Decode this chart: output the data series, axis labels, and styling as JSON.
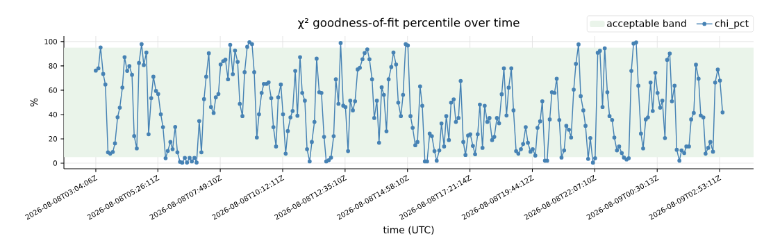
{
  "chart_data": {
    "type": "line",
    "title": "χ² goodness-of-fit percentile over time",
    "xlabel": "time (UTC)",
    "ylabel": "%",
    "x": [
      "2026-08-08T03:04",
      "2026-08-08T03:10",
      "2026-08-08T03:15",
      "2026-08-08T03:21",
      "2026-08-08T03:26",
      "2026-08-08T03:32",
      "2026-08-08T03:37",
      "2026-08-08T03:43",
      "2026-08-08T03:48",
      "2026-08-08T03:54",
      "2026-08-08T03:59",
      "2026-08-08T04:05",
      "2026-08-08T04:10",
      "2026-08-08T04:16",
      "2026-08-08T04:21",
      "2026-08-08T04:27",
      "2026-08-08T04:32",
      "2026-08-08T04:38",
      "2026-08-08T04:43",
      "2026-08-08T04:49",
      "2026-08-08T04:54",
      "2026-08-08T05:00",
      "2026-08-08T05:05",
      "2026-08-08T05:11",
      "2026-08-08T05:16",
      "2026-08-08T05:22",
      "2026-08-08T05:27",
      "2026-08-08T05:33",
      "2026-08-08T05:38",
      "2026-08-08T05:44",
      "2026-08-08T05:49",
      "2026-08-08T05:55",
      "2026-08-08T06:00",
      "2026-08-08T06:06",
      "2026-08-08T06:11",
      "2026-08-08T06:17",
      "2026-08-08T06:22",
      "2026-08-08T06:28",
      "2026-08-08T06:33",
      "2026-08-08T06:39",
      "2026-08-08T06:44",
      "2026-08-08T06:50",
      "2026-08-08T06:55",
      "2026-08-08T07:01",
      "2026-08-08T07:06",
      "2026-08-08T07:12",
      "2026-08-08T07:17",
      "2026-08-08T07:23",
      "2026-08-08T07:28",
      "2026-08-08T07:34",
      "2026-08-08T07:39",
      "2026-08-08T07:45",
      "2026-08-08T07:50",
      "2026-08-08T07:56",
      "2026-08-08T08:01",
      "2026-08-08T08:07",
      "2026-08-08T08:12",
      "2026-08-08T08:18",
      "2026-08-08T08:23",
      "2026-08-08T08:29",
      "2026-08-08T08:34",
      "2026-08-08T08:40",
      "2026-08-08T08:45",
      "2026-08-08T08:51",
      "2026-08-08T08:56",
      "2026-08-08T09:02",
      "2026-08-08T09:07",
      "2026-08-08T09:13",
      "2026-08-08T09:18",
      "2026-08-08T09:24",
      "2026-08-08T09:29",
      "2026-08-08T09:35",
      "2026-08-08T09:40",
      "2026-08-08T09:46",
      "2026-08-08T09:51",
      "2026-08-08T09:57",
      "2026-08-08T10:02",
      "2026-08-08T10:08",
      "2026-08-08T10:13",
      "2026-08-08T10:19",
      "2026-08-08T10:24",
      "2026-08-08T10:30",
      "2026-08-08T10:35",
      "2026-08-08T10:41",
      "2026-08-08T10:46",
      "2026-08-08T10:52",
      "2026-08-08T10:57",
      "2026-08-08T11:03",
      "2026-08-08T11:08",
      "2026-08-08T11:14",
      "2026-08-08T11:19",
      "2026-08-08T11:25",
      "2026-08-08T11:30",
      "2026-08-08T11:36",
      "2026-08-08T11:41",
      "2026-08-08T11:47",
      "2026-08-08T11:52",
      "2026-08-08T11:58",
      "2026-08-08T12:03",
      "2026-08-08T12:09",
      "2026-08-08T12:14",
      "2026-08-08T12:20",
      "2026-08-08T12:25",
      "2026-08-08T12:31",
      "2026-08-08T12:36",
      "2026-08-08T12:42",
      "2026-08-08T12:47",
      "2026-08-08T12:53",
      "2026-08-08T12:58",
      "2026-08-08T13:04",
      "2026-08-08T13:09",
      "2026-08-08T13:15",
      "2026-08-08T13:20",
      "2026-08-08T13:26",
      "2026-08-08T13:31",
      "2026-08-08T13:37",
      "2026-08-08T13:42",
      "2026-08-08T13:48",
      "2026-08-08T13:53",
      "2026-08-08T13:59",
      "2026-08-08T14:04",
      "2026-08-08T14:10",
      "2026-08-08T14:15",
      "2026-08-08T14:21",
      "2026-08-08T14:26",
      "2026-08-08T14:32",
      "2026-08-08T14:37",
      "2026-08-08T14:43",
      "2026-08-08T14:48",
      "2026-08-08T14:54",
      "2026-08-08T14:59",
      "2026-08-08T15:05",
      "2026-08-08T15:10",
      "2026-08-08T15:16",
      "2026-08-08T15:21",
      "2026-08-08T15:27",
      "2026-08-08T15:32",
      "2026-08-08T15:38",
      "2026-08-08T15:43",
      "2026-08-08T15:49",
      "2026-08-08T15:54",
      "2026-08-08T16:00",
      "2026-08-08T16:05",
      "2026-08-08T16:11",
      "2026-08-08T16:16",
      "2026-08-08T16:22",
      "2026-08-08T16:27",
      "2026-08-08T16:33",
      "2026-08-08T16:38",
      "2026-08-08T16:44",
      "2026-08-08T16:49",
      "2026-08-08T16:55",
      "2026-08-08T17:00",
      "2026-08-08T17:06",
      "2026-08-08T17:11",
      "2026-08-08T17:17",
      "2026-08-08T17:22",
      "2026-08-08T17:28",
      "2026-08-08T17:33",
      "2026-08-08T17:39",
      "2026-08-08T17:44",
      "2026-08-08T17:50",
      "2026-08-08T17:55",
      "2026-08-08T18:01",
      "2026-08-08T18:06",
      "2026-08-08T18:12",
      "2026-08-08T18:17",
      "2026-08-08T18:23",
      "2026-08-08T18:28",
      "2026-08-08T18:34",
      "2026-08-08T18:39",
      "2026-08-08T18:45",
      "2026-08-08T18:50",
      "2026-08-08T18:56",
      "2026-08-08T19:01",
      "2026-08-08T19:07",
      "2026-08-08T19:12",
      "2026-08-08T19:18",
      "2026-08-08T19:23",
      "2026-08-08T19:29",
      "2026-08-08T19:34",
      "2026-08-08T19:40",
      "2026-08-08T19:45",
      "2026-08-08T19:51",
      "2026-08-08T19:56",
      "2026-08-08T20:02",
      "2026-08-08T20:07",
      "2026-08-08T20:13",
      "2026-08-08T20:18",
      "2026-08-08T20:24",
      "2026-08-08T20:29",
      "2026-08-08T20:35",
      "2026-08-08T20:40",
      "2026-08-08T20:46",
      "2026-08-08T20:51",
      "2026-08-08T20:57",
      "2026-08-08T21:02",
      "2026-08-08T21:08",
      "2026-08-08T21:13",
      "2026-08-08T21:19",
      "2026-08-08T21:24",
      "2026-08-08T21:30",
      "2026-08-08T21:35",
      "2026-08-08T21:41",
      "2026-08-08T21:46",
      "2026-08-08T21:52",
      "2026-08-08T21:57",
      "2026-08-08T22:03",
      "2026-08-08T22:08",
      "2026-08-08T22:14",
      "2026-08-08T22:19",
      "2026-08-08T22:25",
      "2026-08-08T22:30",
      "2026-08-08T22:36",
      "2026-08-08T22:41",
      "2026-08-08T22:47",
      "2026-08-08T22:52",
      "2026-08-08T22:58",
      "2026-08-08T23:03",
      "2026-08-08T23:09",
      "2026-08-08T23:14",
      "2026-08-08T23:20",
      "2026-08-08T23:25",
      "2026-08-08T23:31",
      "2026-08-08T23:36",
      "2026-08-08T23:42",
      "2026-08-08T23:47",
      "2026-08-08T23:53",
      "2026-08-08T23:58",
      "2026-08-09T00:04",
      "2026-08-09T00:09",
      "2026-08-09T00:15",
      "2026-08-09T00:20",
      "2026-08-09T00:26",
      "2026-08-09T00:31",
      "2026-08-09T00:37",
      "2026-08-09T00:42",
      "2026-08-09T00:48",
      "2026-08-09T00:53",
      "2026-08-09T00:59",
      "2026-08-09T01:04",
      "2026-08-09T01:10",
      "2026-08-09T01:15",
      "2026-08-09T01:21",
      "2026-08-09T01:26",
      "2026-08-09T01:32",
      "2026-08-09T01:37",
      "2026-08-09T01:43",
      "2026-08-09T01:48",
      "2026-08-09T01:54",
      "2026-08-09T01:59",
      "2026-08-09T02:05",
      "2026-08-09T02:10",
      "2026-08-09T02:16",
      "2026-08-09T02:21",
      "2026-08-09T02:27",
      "2026-08-09T02:32",
      "2026-08-09T02:38",
      "2026-08-09T02:43",
      "2026-08-09T02:49",
      "2026-08-09T02:54",
      "2026-08-09T03:00"
    ],
    "series": [
      {
        "name": "chi_pct",
        "color": "#4682b4",
        "values": [
          76.1,
          78,
          95.2,
          73.4,
          64.7,
          8.9,
          7.8,
          9.2,
          16.3,
          37.8,
          45.6,
          62.2,
          87.2,
          75.9,
          79.8,
          72.7,
          22.3,
          12.1,
          82.4,
          97.9,
          80.7,
          91.0,
          23.8,
          53.5,
          71.1,
          59.4,
          56.9,
          40.2,
          29.6,
          4.1,
          10.1,
          17.4,
          11.5,
          29.8,
          8.9,
          1.1,
          0.4,
          4.3,
          0.5,
          4.3,
          1.4,
          4.3,
          0.5,
          34.6,
          8.9,
          52.7,
          71.1,
          90.4,
          46.1,
          41.3,
          54.1,
          56.9,
          81.2,
          83.9,
          85.1,
          69.0,
          97.3,
          73.2,
          92.6,
          83.3,
          48.8,
          38.7,
          74.8,
          95.7,
          99.5,
          97.9,
          74.8,
          21.1,
          40.2,
          57.8,
          65.2,
          65.2,
          66.5,
          53.5,
          29.6,
          13.7,
          54.1,
          64.7,
          40.2,
          7.8,
          26.4,
          37.6,
          42.9,
          75.9,
          39.0,
          87.2,
          57.8,
          51.4,
          11.5,
          1.4,
          17.4,
          33.9,
          86.0,
          58.3,
          57.8,
          21.6,
          1.4,
          2.5,
          4.6,
          22.2,
          69.0,
          48.8,
          98.8,
          47.3,
          46.1,
          9.9,
          51.4,
          43.4,
          50.9,
          77.1,
          78.5,
          85.5,
          90.6,
          93.6,
          85.5,
          69.0,
          37.1,
          51.4,
          16.8,
          62.4,
          56.2,
          26.2,
          69.0,
          79.1,
          91.0,
          81.2,
          49.8,
          38.7,
          56.2,
          97.9,
          96.8,
          38.7,
          29.1,
          14.7,
          17.4,
          63.1,
          47.2,
          1.4,
          1.4,
          24.3,
          22.2,
          9.9,
          2.0,
          10.5,
          32.6,
          13.7,
          38.7,
          19.0,
          49.8,
          52.5,
          33.9,
          37.1,
          67.6,
          17.4,
          6.7,
          22.7,
          23.8,
          14.2,
          7.3,
          23.8,
          48.2,
          12.6,
          47.2,
          33.9,
          37.1,
          19.0,
          21.6,
          37.1,
          32.8,
          56.7,
          78.0,
          39.2,
          62.1,
          78.0,
          43.4,
          9.9,
          7.8,
          11.5,
          15.8,
          29.6,
          16.8,
          9.4,
          11.5,
          6.2,
          29.1,
          34.4,
          50.9,
          2.0,
          2.0,
          36.0,
          58.3,
          57.8,
          69.5,
          35.5,
          4.6,
          10.5,
          30.7,
          27.5,
          21.1,
          60.5,
          81.7,
          97.7,
          55.1,
          43.4,
          30.7,
          3.5,
          20.6,
          0.4,
          4.1,
          90.8,
          92.4,
          46.1,
          94.5,
          58.3,
          38.7,
          35.5,
          21.1,
          10.5,
          13.7,
          8.3,
          4.6,
          3.0,
          4.1,
          75.9,
          98.4,
          99.3,
          63.7,
          24.3,
          12.1,
          36.0,
          37.6,
          66.3,
          42.9,
          74.3,
          57.8,
          45.6,
          51.4,
          20.6,
          85,
          90.2,
          50.9,
          63.7,
          11.0,
          2.0,
          10.5,
          8.3,
          13.7,
          13.7,
          36.0,
          41.3,
          81.0,
          69.5,
          39.2,
          37.6,
          7.8,
          12.6,
          17.4,
          9.4,
          66.3,
          77.0,
          67.9,
          41.8
        ]
      }
    ],
    "bands": [
      {
        "axis": "y",
        "from": 5,
        "to": 95,
        "label": "acceptable band",
        "color": "#eaf4ea"
      }
    ],
    "xlim": [
      "2026-08-08T01:51",
      "2026-08-09T04:11"
    ],
    "ylim": [
      -4.6,
      104.5
    ],
    "xticks": [
      {
        "value": "2026-08-08T03:04:06",
        "label": "2026-08-08T03:04:06Z"
      },
      {
        "value": "2026-08-08T05:26:11",
        "label": "2026-08-08T05:26:11Z"
      },
      {
        "value": "2026-08-08T07:49:10",
        "label": "2026-08-08T07:49:10Z"
      },
      {
        "value": "2026-08-08T10:12:11",
        "label": "2026-08-08T10:12:11Z"
      },
      {
        "value": "2026-08-08T12:35:10",
        "label": "2026-08-08T12:35:10Z"
      },
      {
        "value": "2026-08-08T14:58:10",
        "label": "2026-08-08T14:58:10Z"
      },
      {
        "value": "2026-08-08T17:21:14",
        "label": "2026-08-08T17:21:14Z"
      },
      {
        "value": "2026-08-08T19:44:12",
        "label": "2026-08-08T19:44:12Z"
      },
      {
        "value": "2026-08-08T22:07:10",
        "label": "2026-08-08T22:07:10Z"
      },
      {
        "value": "2026-08-09T00:30:13",
        "label": "2026-08-09T00:30:13Z"
      },
      {
        "value": "2026-08-09T02:53:11",
        "label": "2026-08-09T02:53:11Z"
      }
    ],
    "yticks": [
      0,
      20,
      40,
      60,
      80,
      100
    ],
    "grid": true,
    "legend": "top right",
    "marker": "circle",
    "line_style": "solid"
  }
}
